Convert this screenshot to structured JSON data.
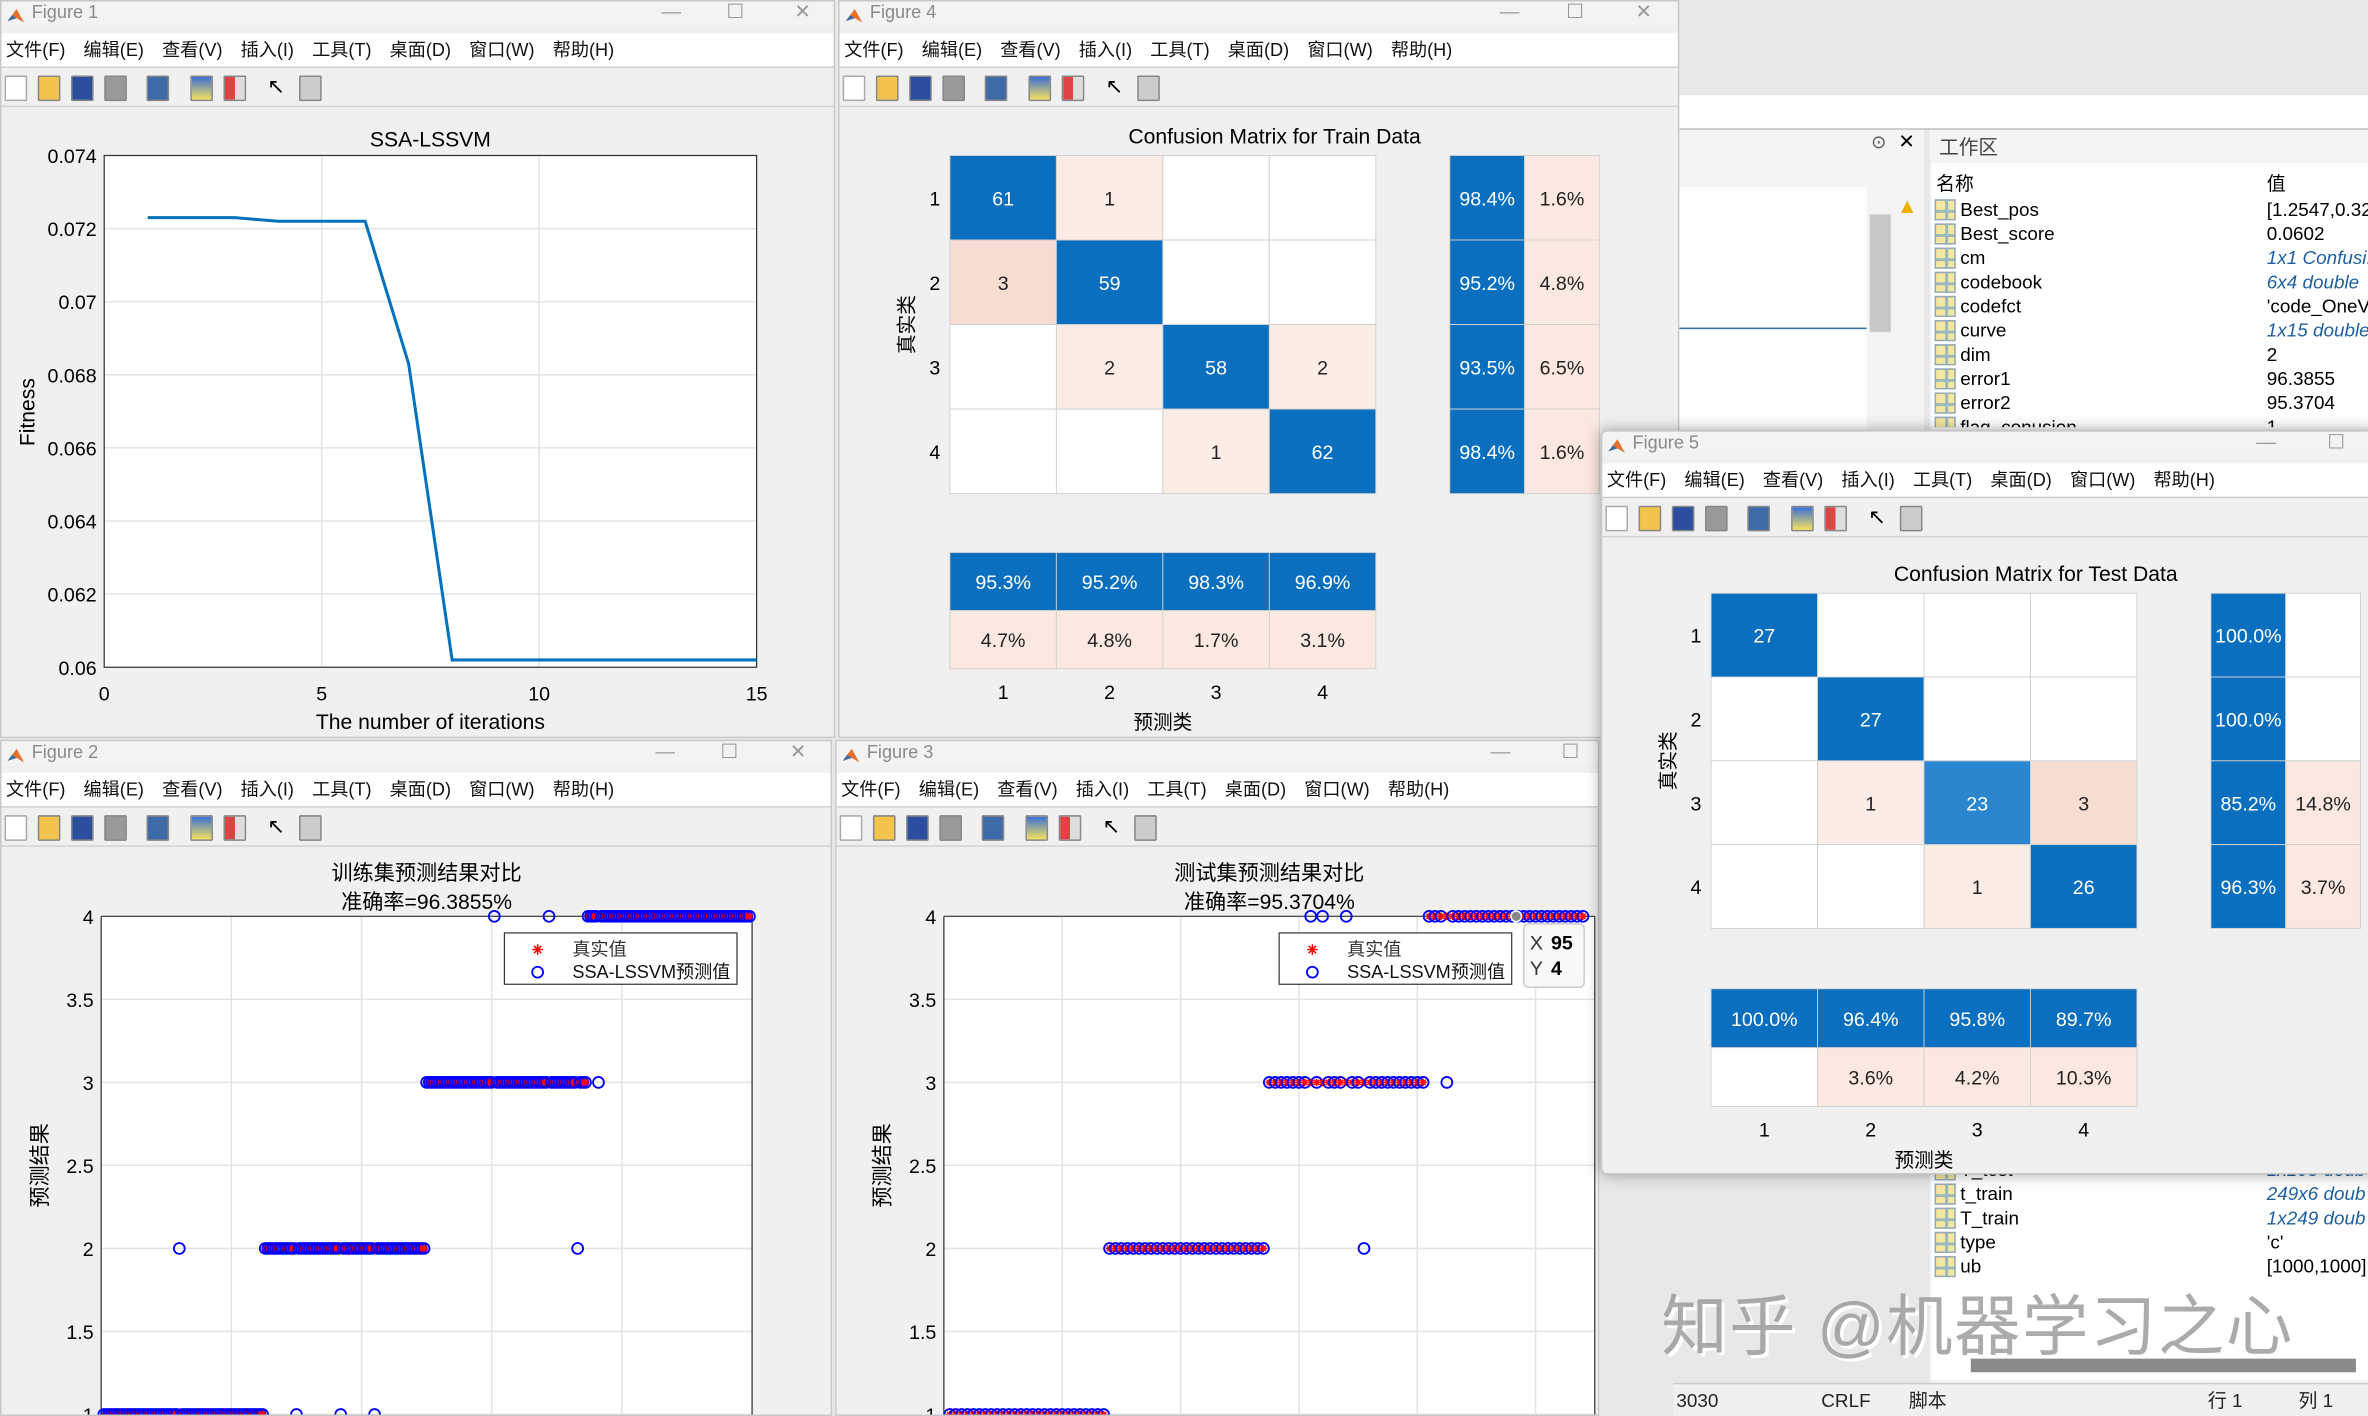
{
  "figure_menu": [
    "文件(F)",
    "编辑(E)",
    "查看(V)",
    "插入(I)",
    "工具(T)",
    "桌面(D)",
    "窗口(W)",
    "帮助(H)"
  ],
  "window_controls": {
    "minimize": "—",
    "maximize": "☐",
    "close": "✕"
  },
  "figures": {
    "fig1": {
      "title": "Figure 1"
    },
    "fig2": {
      "title": "Figure 2"
    },
    "fig3": {
      "title": "Figure 3"
    },
    "fig4": {
      "title": "Figure 4"
    },
    "fig5": {
      "title": "Figure 5"
    }
  },
  "chart_data": [
    {
      "id": "fig1",
      "type": "line",
      "title": "SSA-LSSVM",
      "xlabel": "The number of iterations",
      "ylabel": "Fitness",
      "xlim": [
        0,
        15
      ],
      "ylim": [
        0.06,
        0.074
      ],
      "xticks": [
        0,
        5,
        10,
        15
      ],
      "yticks": [
        0.06,
        0.062,
        0.064,
        0.066,
        0.068,
        0.07,
        0.072,
        0.074
      ],
      "ytick_labels": [
        "0.06",
        "0.062",
        "0.064",
        "0.066",
        "0.068",
        "0.07",
        "0.072",
        "0.074"
      ],
      "grid": true,
      "color": "#0072BD",
      "x": [
        1,
        2,
        3,
        4,
        5,
        6,
        7,
        8,
        9,
        10,
        11,
        12,
        13,
        14,
        15
      ],
      "y": [
        0.0723,
        0.0723,
        0.0723,
        0.0722,
        0.0722,
        0.0722,
        0.0683,
        0.0602,
        0.0602,
        0.0602,
        0.0602,
        0.0602,
        0.0602,
        0.0602,
        0.0602
      ]
    },
    {
      "id": "fig4",
      "type": "heatmap",
      "title": "Confusion Matrix for Train Data",
      "xlabel": "预测类",
      "ylabel": "真实类",
      "labels": [
        "1",
        "2",
        "3",
        "4"
      ],
      "matrix": [
        [
          61,
          1,
          0,
          0
        ],
        [
          3,
          59,
          0,
          0
        ],
        [
          0,
          2,
          58,
          2
        ],
        [
          0,
          0,
          1,
          62
        ]
      ],
      "row_summary": [
        [
          "98.4%",
          "1.6%"
        ],
        [
          "95.2%",
          "4.8%"
        ],
        [
          "93.5%",
          "6.5%"
        ],
        [
          "98.4%",
          "1.6%"
        ]
      ],
      "col_summary": [
        [
          "95.3%",
          "95.2%",
          "98.3%",
          "96.9%"
        ],
        [
          "4.7%",
          "4.8%",
          "1.7%",
          "3.1%"
        ]
      ]
    },
    {
      "id": "fig5",
      "type": "heatmap",
      "title": "Confusion Matrix for Test Data",
      "xlabel": "预测类",
      "ylabel": "真实类",
      "labels": [
        "1",
        "2",
        "3",
        "4"
      ],
      "matrix": [
        [
          27,
          0,
          0,
          0
        ],
        [
          0,
          27,
          0,
          0
        ],
        [
          0,
          1,
          23,
          3
        ],
        [
          0,
          0,
          1,
          26
        ]
      ],
      "row_summary": [
        [
          "100.0%",
          ""
        ],
        [
          "100.0%",
          ""
        ],
        [
          "85.2%",
          "14.8%"
        ],
        [
          "96.3%",
          "3.7%"
        ]
      ],
      "col_summary": [
        [
          "100.0%",
          "96.4%",
          "95.8%",
          "89.7%"
        ],
        [
          "",
          "3.6%",
          "4.2%",
          "10.3%"
        ]
      ]
    },
    {
      "id": "fig2",
      "type": "scatter",
      "title": "训练集预测结果对比",
      "subtitle": "准确率=96.3855%",
      "ylabel": "预测结果",
      "xlim": [
        0,
        250
      ],
      "ylim": [
        1,
        4
      ],
      "yticks": [
        1,
        1.5,
        2,
        2.5,
        3,
        3.5,
        4
      ],
      "ytick_labels": [
        "1",
        "1.5",
        "2",
        "2.5",
        "3",
        "3.5",
        "4"
      ],
      "grid": true,
      "legend": [
        "真实值",
        "SSA-LSSVM预测值"
      ],
      "legend_position": "top-right",
      "true_segments": [
        {
          "class": 1,
          "from": 1,
          "to": 62
        },
        {
          "class": 2,
          "from": 63,
          "to": 124
        },
        {
          "class": 3,
          "from": 125,
          "to": 186
        },
        {
          "class": 4,
          "from": 187,
          "to": 249
        }
      ],
      "mispredictions": [
        {
          "x": 30,
          "y": 2
        },
        {
          "x": 75,
          "y": 1
        },
        {
          "x": 92,
          "y": 1
        },
        {
          "x": 105,
          "y": 1
        },
        {
          "x": 151,
          "y": 4
        },
        {
          "x": 172,
          "y": 4
        },
        {
          "x": 183,
          "y": 2
        },
        {
          "x": 191,
          "y": 3
        }
      ],
      "colors": {
        "true": "#ff0000",
        "pred": "#0000ff"
      }
    },
    {
      "id": "fig3",
      "type": "scatter",
      "title": "测试集预测结果对比",
      "subtitle": "准确率=95.3704%",
      "ylabel": "预测结果",
      "xlim": [
        0,
        110
      ],
      "ylim": [
        1,
        4
      ],
      "yticks": [
        1,
        1.5,
        2,
        2.5,
        3,
        3.5,
        4
      ],
      "ytick_labels": [
        "1",
        "1.5",
        "2",
        "2.5",
        "3",
        "3.5",
        "4"
      ],
      "grid": true,
      "legend": [
        "真实值",
        "SSA-LSSVM预测值"
      ],
      "legend_position": "top-right",
      "true_segments": [
        {
          "class": 1,
          "from": 1,
          "to": 27
        },
        {
          "class": 2,
          "from": 28,
          "to": 54
        },
        {
          "class": 3,
          "from": 55,
          "to": 81
        },
        {
          "class": 4,
          "from": 82,
          "to": 108
        }
      ],
      "mispredictions": [
        {
          "x": 62,
          "y": 4
        },
        {
          "x": 64,
          "y": 4
        },
        {
          "x": 68,
          "y": 4
        },
        {
          "x": 71,
          "y": 2
        },
        {
          "x": 85,
          "y": 3
        }
      ],
      "colors": {
        "true": "#ff0000",
        "pred": "#0000ff"
      },
      "datatip": {
        "x_label": "X",
        "x": "95",
        "y_label": "Y",
        "y": "4"
      }
    }
  ],
  "workspace": {
    "title": "工作区",
    "col_name": "名称",
    "col_value": "值",
    "rows_top": [
      {
        "name": "Best_pos",
        "value": "[1.2547,0.32",
        "kind": "matrix"
      },
      {
        "name": "Best_score",
        "value": "0.0602",
        "kind": "matrix"
      },
      {
        "name": "cm",
        "value": "1x1 Confusi...",
        "kind": "object",
        "italic": true
      },
      {
        "name": "codebook",
        "value": "6x4 double",
        "kind": "matrix",
        "italic": true
      },
      {
        "name": "codefct",
        "value": "'code_OneV...",
        "kind": "char"
      },
      {
        "name": "curve",
        "value": "1x15 double",
        "kind": "matrix",
        "italic": true
      },
      {
        "name": "dim",
        "value": "2",
        "kind": "matrix"
      },
      {
        "name": "error1",
        "value": "96.3855",
        "kind": "matrix"
      },
      {
        "name": "error2",
        "value": "95.3704",
        "kind": "matrix"
      },
      {
        "name": "flag_conusion",
        "value": "1",
        "kind": "matrix"
      }
    ],
    "rows_bottom": [
      {
        "name": "T_test",
        "value": "1x108 doub",
        "kind": "matrix",
        "italic": true
      },
      {
        "name": "t_train",
        "value": "249x6 doub",
        "kind": "matrix",
        "italic": true
      },
      {
        "name": "T_train",
        "value": "1x249 doub",
        "kind": "matrix",
        "italic": true
      },
      {
        "name": "type",
        "value": "'c'",
        "kind": "char"
      },
      {
        "name": "ub",
        "value": "[1000,1000]",
        "kind": "matrix"
      }
    ]
  },
  "status_bar": {
    "encoding": "3030",
    "line_ending": "CRLF",
    "mode": "脚本",
    "row": "行 1",
    "col": "列 1"
  },
  "watermark": "知乎 @机器学习之心"
}
